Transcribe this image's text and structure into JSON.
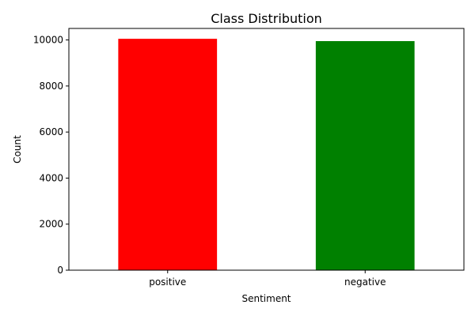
{
  "chart_data": {
    "type": "bar",
    "title": "Class Distribution",
    "xlabel": "Sentiment",
    "ylabel": "Count",
    "categories": [
      "positive",
      "negative"
    ],
    "values": [
      10050,
      9950
    ],
    "colors": [
      "#ff0000",
      "#008000"
    ],
    "ylim": [
      0,
      10500
    ],
    "yticks": [
      0,
      2000,
      4000,
      6000,
      8000,
      10000
    ],
    "grid": false,
    "legend": "none"
  }
}
